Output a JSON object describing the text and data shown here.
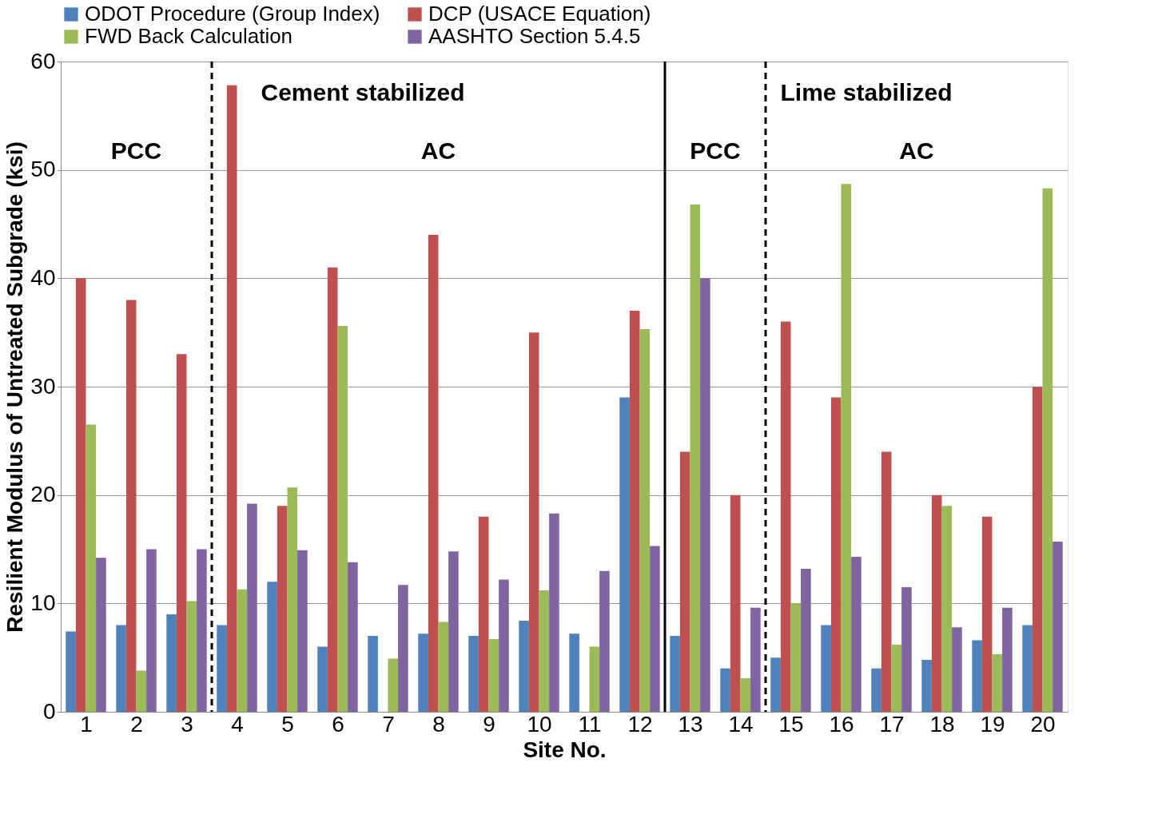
{
  "chart_data": {
    "type": "bar",
    "xlabel": "Site No.",
    "ylabel": "Resilient Modulus of Untreated Subgrade (ksi)",
    "x": [
      1,
      2,
      3,
      4,
      5,
      6,
      7,
      8,
      9,
      10,
      11,
      12,
      13,
      14,
      15,
      16,
      17,
      18,
      19,
      20
    ],
    "xlim": [
      0.5,
      20.5
    ],
    "xticks": [
      1,
      2,
      3,
      4,
      5,
      6,
      7,
      8,
      9,
      10,
      11,
      12,
      13,
      14,
      15,
      16,
      17,
      18,
      19,
      20
    ],
    "ylim": [
      0,
      60
    ],
    "yticks": [
      0,
      10,
      20,
      30,
      40,
      50,
      60
    ],
    "grid": "y",
    "legend": "top",
    "series": [
      {
        "name": "ODOT Procedure (Group Index)",
        "color": "#4f81bd",
        "values": [
          7.4,
          8,
          9,
          8,
          12,
          6,
          7,
          7.2,
          7,
          8.4,
          7.2,
          29,
          7,
          4,
          5,
          8,
          4,
          4.8,
          6.6,
          8
        ]
      },
      {
        "name": "DCP (USACE Equation)",
        "color": "#c0504d",
        "values": [
          40,
          38,
          33,
          57.8,
          19,
          41,
          null,
          44,
          18,
          35,
          null,
          37,
          24,
          20,
          36,
          29,
          24,
          20,
          18,
          30
        ]
      },
      {
        "name": "FWD Back Calculation",
        "color": "#9bbb59",
        "values": [
          26.5,
          3.8,
          10.2,
          11.3,
          20.7,
          35.6,
          4.9,
          8.3,
          6.7,
          11.2,
          6,
          35.3,
          46.8,
          3.1,
          10,
          48.7,
          6.2,
          19,
          5.3,
          48.3
        ]
      },
      {
        "name": "AASHTO Section 5.4.5",
        "color": "#8064a2",
        "values": [
          14.2,
          15,
          15,
          19.2,
          14.9,
          13.8,
          11.7,
          14.8,
          12.2,
          18.3,
          13,
          15.3,
          40,
          9.6,
          13.2,
          14.3,
          11.5,
          7.8,
          9.6,
          15.7
        ]
      }
    ],
    "ref_lines": [
      {
        "axis": "x",
        "value": 3.5,
        "line_style": "dashed",
        "color": "#000000"
      },
      {
        "axis": "x",
        "value": 12.5,
        "line_style": "solid",
        "color": "#000000"
      },
      {
        "axis": "x",
        "value": 14.5,
        "line_style": "dashed",
        "color": "#000000"
      }
    ],
    "annotations": [
      "Cement stabilized",
      "Lime stabilized",
      "PCC",
      "AC",
      "PCC",
      "AC"
    ]
  }
}
